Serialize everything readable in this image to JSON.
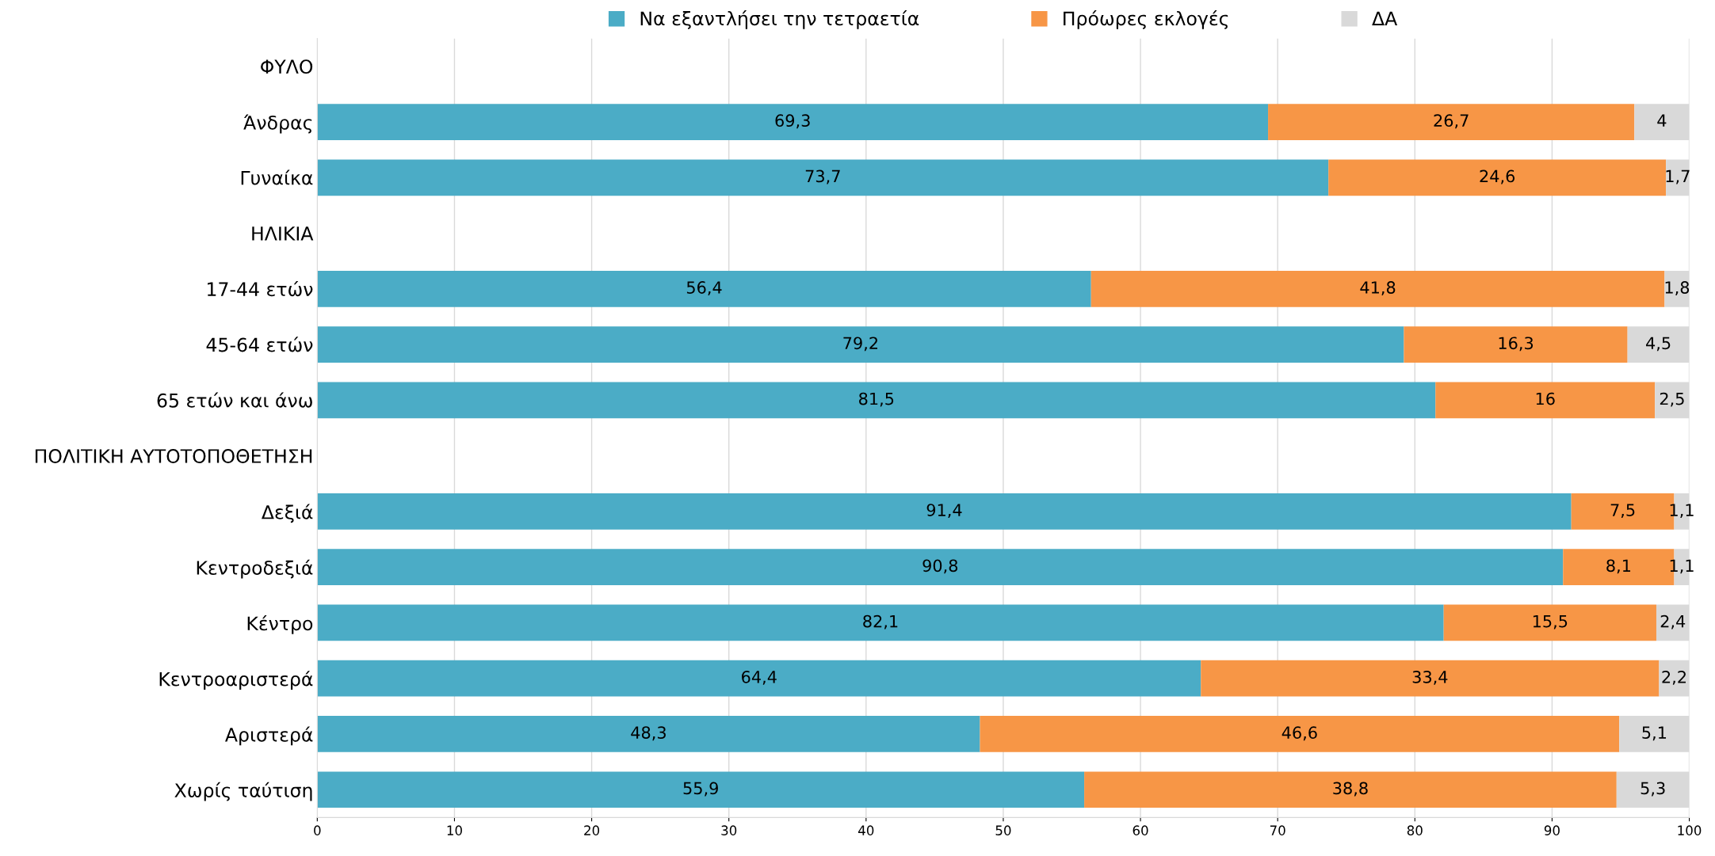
{
  "chart_data": {
    "type": "bar",
    "orientation": "horizontal",
    "stacked": true,
    "categories": [
      "ΦΥΛΟ",
      "Άνδρας",
      "Γυναίκα",
      "ΗΛΙΚΙΑ",
      "17-44 ετών",
      "45-64 ετών",
      "65 ετών και άνω",
      "ΠΟΛΙΤΙΚΗ ΑΥΤΟΤΟΠΟΘΕΤΗΣΗ",
      "Δεξιά",
      "Κεντροδεξιά",
      "Κέντρο",
      "Κεντροαριστερά",
      "Αριστερά",
      "Χωρίς ταύτιση"
    ],
    "series": [
      {
        "name": "Να εξαντλήσει την τετραετία",
        "color": "#4bacc6",
        "values": [
          null,
          69.3,
          73.7,
          null,
          56.4,
          79.2,
          81.5,
          null,
          91.4,
          90.8,
          82.1,
          64.4,
          48.3,
          55.9
        ],
        "value_labels": [
          null,
          "69,3",
          "73,7",
          null,
          "56,4",
          "79,2",
          "81,5",
          null,
          "91,4",
          "90,8",
          "82,1",
          "64,4",
          "48,3",
          "55,9"
        ]
      },
      {
        "name": "Πρόωρες εκλογές",
        "color": "#f79646",
        "values": [
          null,
          26.7,
          24.6,
          null,
          41.8,
          16.3,
          16,
          null,
          7.5,
          8.1,
          15.5,
          33.4,
          46.6,
          38.8
        ],
        "value_labels": [
          null,
          "26,7",
          "24,6",
          null,
          "41,8",
          "16,3",
          "16",
          null,
          "7,5",
          "8,1",
          "15,5",
          "33,4",
          "46,6",
          "38,8"
        ]
      },
      {
        "name": "ΔΑ",
        "color": "#d9d9d9",
        "values": [
          null,
          4,
          1.7,
          null,
          1.8,
          4.5,
          2.5,
          null,
          1.1,
          1.1,
          2.4,
          2.2,
          5.1,
          5.3
        ],
        "value_labels": [
          null,
          "4",
          "1,7",
          null,
          "1,8",
          "4,5",
          "2,5",
          null,
          "1,1",
          "1,1",
          "2,4",
          "2,2",
          "5,1",
          "5,3"
        ]
      }
    ],
    "xlim": [
      0,
      100
    ],
    "xticks": [
      0,
      10,
      20,
      30,
      40,
      50,
      60,
      70,
      80,
      90,
      100
    ],
    "grid": "x",
    "legend": "top"
  }
}
